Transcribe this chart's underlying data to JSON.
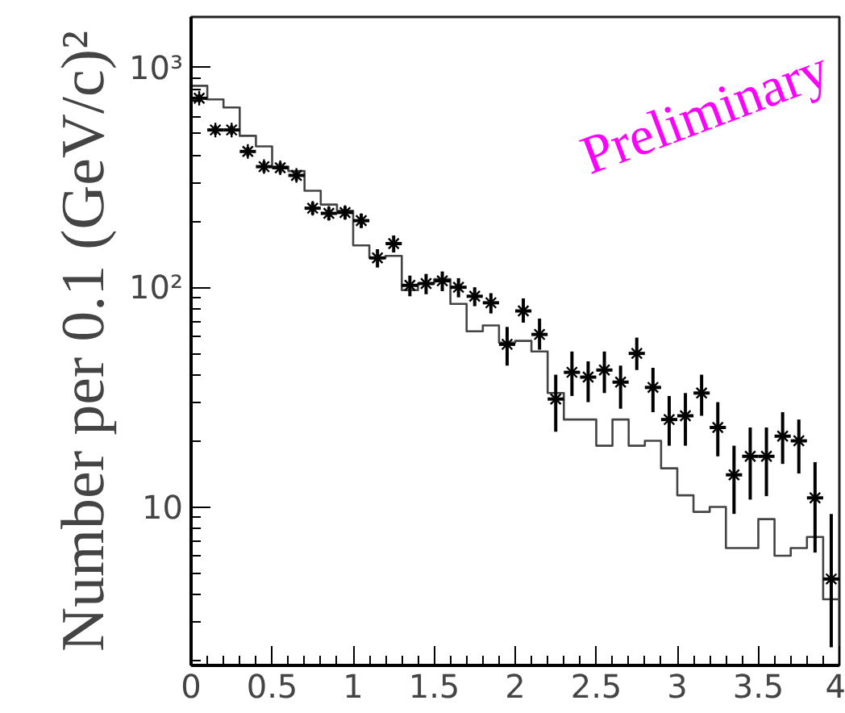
{
  "chart_data": {
    "type": "histogram",
    "ylabel": "Number per 0.1 (GeV/c)²",
    "annotations": [
      "Preliminary"
    ],
    "log": "y",
    "grid": false,
    "xlim": [
      0,
      4
    ],
    "ylim": [
      1.9,
      1700
    ],
    "xticks": [
      0,
      {
        "value": 0.1,
        "label": null
      },
      {
        "value": 0.2,
        "label": null
      },
      {
        "value": 0.3,
        "label": null
      },
      {
        "value": 0.4,
        "label": null
      },
      0.5,
      {
        "value": 0.6,
        "label": null
      },
      {
        "value": 0.7,
        "label": null
      },
      {
        "value": 0.8,
        "label": null
      },
      {
        "value": 0.9,
        "label": null
      },
      1,
      {
        "value": 1.1,
        "label": null
      },
      {
        "value": 1.2,
        "label": null
      },
      {
        "value": 1.3,
        "label": null
      },
      {
        "value": 1.4,
        "label": null
      },
      1.5,
      {
        "value": 1.6,
        "label": null
      },
      {
        "value": 1.7,
        "label": null
      },
      {
        "value": 1.8,
        "label": null
      },
      {
        "value": 1.9,
        "label": null
      },
      2,
      {
        "value": 2.1,
        "label": null
      },
      {
        "value": 2.2,
        "label": null
      },
      {
        "value": 2.3,
        "label": null
      },
      {
        "value": 2.4,
        "label": null
      },
      2.5,
      {
        "value": 2.6,
        "label": null
      },
      {
        "value": 2.7,
        "label": null
      },
      {
        "value": 2.8,
        "label": null
      },
      {
        "value": 2.9,
        "label": null
      },
      3,
      {
        "value": 3.1,
        "label": null
      },
      {
        "value": 3.2,
        "label": null
      },
      {
        "value": 3.3,
        "label": null
      },
      {
        "value": 3.4,
        "label": null
      },
      3.5,
      {
        "value": 3.6,
        "label": null
      },
      {
        "value": 3.7,
        "label": null
      },
      {
        "value": 3.8,
        "label": null
      },
      {
        "value": 3.9,
        "label": null
      },
      4
    ],
    "yticks": [
      {
        "value": 2,
        "label": null
      },
      {
        "value": 3,
        "label": null
      },
      {
        "value": 4,
        "label": null
      },
      {
        "value": 5,
        "label": null
      },
      {
        "value": 6,
        "label": null
      },
      {
        "value": 7,
        "label": null
      },
      {
        "value": 8,
        "label": null
      },
      {
        "value": 9,
        "label": null
      },
      10,
      {
        "value": 20,
        "label": null
      },
      {
        "value": 30,
        "label": null
      },
      {
        "value": 40,
        "label": null
      },
      {
        "value": 50,
        "label": null
      },
      {
        "value": 60,
        "label": null
      },
      {
        "value": 70,
        "label": null
      },
      {
        "value": 80,
        "label": null
      },
      {
        "value": 90,
        "label": null
      },
      {
        "value": 100,
        "label": "10²"
      },
      {
        "value": 200,
        "label": null
      },
      {
        "value": 300,
        "label": null
      },
      {
        "value": 400,
        "label": null
      },
      {
        "value": 500,
        "label": null
      },
      {
        "value": 600,
        "label": null
      },
      {
        "value": 700,
        "label": null
      },
      {
        "value": 800,
        "label": null
      },
      {
        "value": 900,
        "label": null
      },
      {
        "value": 1000,
        "label": "10³"
      }
    ],
    "series": [
      {
        "type": "histogram",
        "color": "#444444",
        "bins": [
          0,
          0.1,
          0.2,
          0.3,
          0.4,
          0.5,
          0.6,
          0.7,
          0.8,
          0.9,
          1,
          1.1,
          1.2,
          1.3,
          1.4,
          1.5,
          1.6,
          1.7,
          1.8,
          1.9,
          2,
          2.1,
          2.2,
          2.3,
          2.4,
          2.5,
          2.6,
          2.7,
          2.8,
          2.9,
          3,
          3.1,
          3.2,
          3.3,
          3.4,
          3.5,
          3.6,
          3.7,
          3.8,
          3.9,
          4
        ],
        "values": [
          826,
          716,
          658,
          489,
          438,
          354,
          338,
          275,
          238,
          223,
          155,
          136,
          139,
          97,
          104,
          109,
          84,
          63,
          67,
          56,
          57,
          51,
          33,
          25,
          25,
          19,
          25,
          19,
          20,
          15,
          11.3,
          9.5,
          10,
          6.5,
          6.5,
          8.8,
          6,
          6.5,
          7.3,
          3.8
        ]
      },
      {
        "type": "scatter",
        "color": "#000000",
        "marker": "cross",
        "x": [
          0.05,
          0.15,
          0.25,
          0.35,
          0.45,
          0.55,
          0.65,
          0.75,
          0.85,
          0.95,
          1.05,
          1.15,
          1.25,
          1.35,
          1.45,
          1.55,
          1.65,
          1.75,
          1.85,
          1.95,
          2.05,
          2.15,
          2.25,
          2.35,
          2.45,
          2.55,
          2.65,
          2.75,
          2.85,
          2.95,
          3.05,
          3.15,
          3.25,
          3.35,
          3.45,
          3.55,
          3.65,
          3.75,
          3.85,
          3.95
        ],
        "values": [
          725,
          520,
          520,
          415,
          354,
          350,
          323,
          229,
          217,
          219,
          201,
          136,
          158,
          102,
          104,
          107,
          100,
          91,
          85,
          55,
          78,
          61,
          31,
          41,
          39,
          42,
          37,
          50,
          35,
          25,
          26,
          33,
          23,
          14,
          17,
          17,
          21,
          20,
          11,
          4.7
        ],
        "errors": [
          30,
          25,
          25,
          20,
          20,
          20,
          18,
          15,
          15,
          15,
          15,
          13,
          14,
          11,
          11,
          11,
          10,
          9,
          9,
          [
            44,
            66
          ],
          [
            69,
            89
          ],
          [
            52,
            72
          ],
          [
            22,
            40
          ],
          [
            32,
            51
          ],
          [
            30,
            46
          ],
          [
            33,
            51
          ],
          [
            28,
            44
          ],
          [
            42,
            59
          ],
          [
            27,
            43
          ],
          [
            19,
            32
          ],
          [
            19,
            33
          ],
          [
            26,
            40
          ],
          [
            17,
            30
          ],
          [
            9.3,
            19
          ],
          [
            10.8,
            23
          ],
          [
            11.2,
            23
          ],
          [
            15.7,
            27
          ],
          [
            14.2,
            25
          ],
          [
            6.2,
            16
          ],
          [
            2.3,
            9.3
          ]
        ],
        "xerrors": [
          0.05,
          0.05,
          0.05,
          0.05,
          0.05,
          0.05,
          0.05,
          0.05,
          0.05,
          0.05,
          0.05,
          0.05,
          0.05,
          0.05,
          0.05,
          0.05,
          0.05,
          0.05,
          0.05,
          0.05,
          0.05,
          0.05,
          0.05,
          0.05,
          0.05,
          0.05,
          0.05,
          0.05,
          0.05,
          0.05,
          0.05,
          0.05,
          0.05,
          0.05,
          0.05,
          0.05,
          0.05,
          0.05,
          0.05,
          0.05
        ]
      }
    ]
  }
}
